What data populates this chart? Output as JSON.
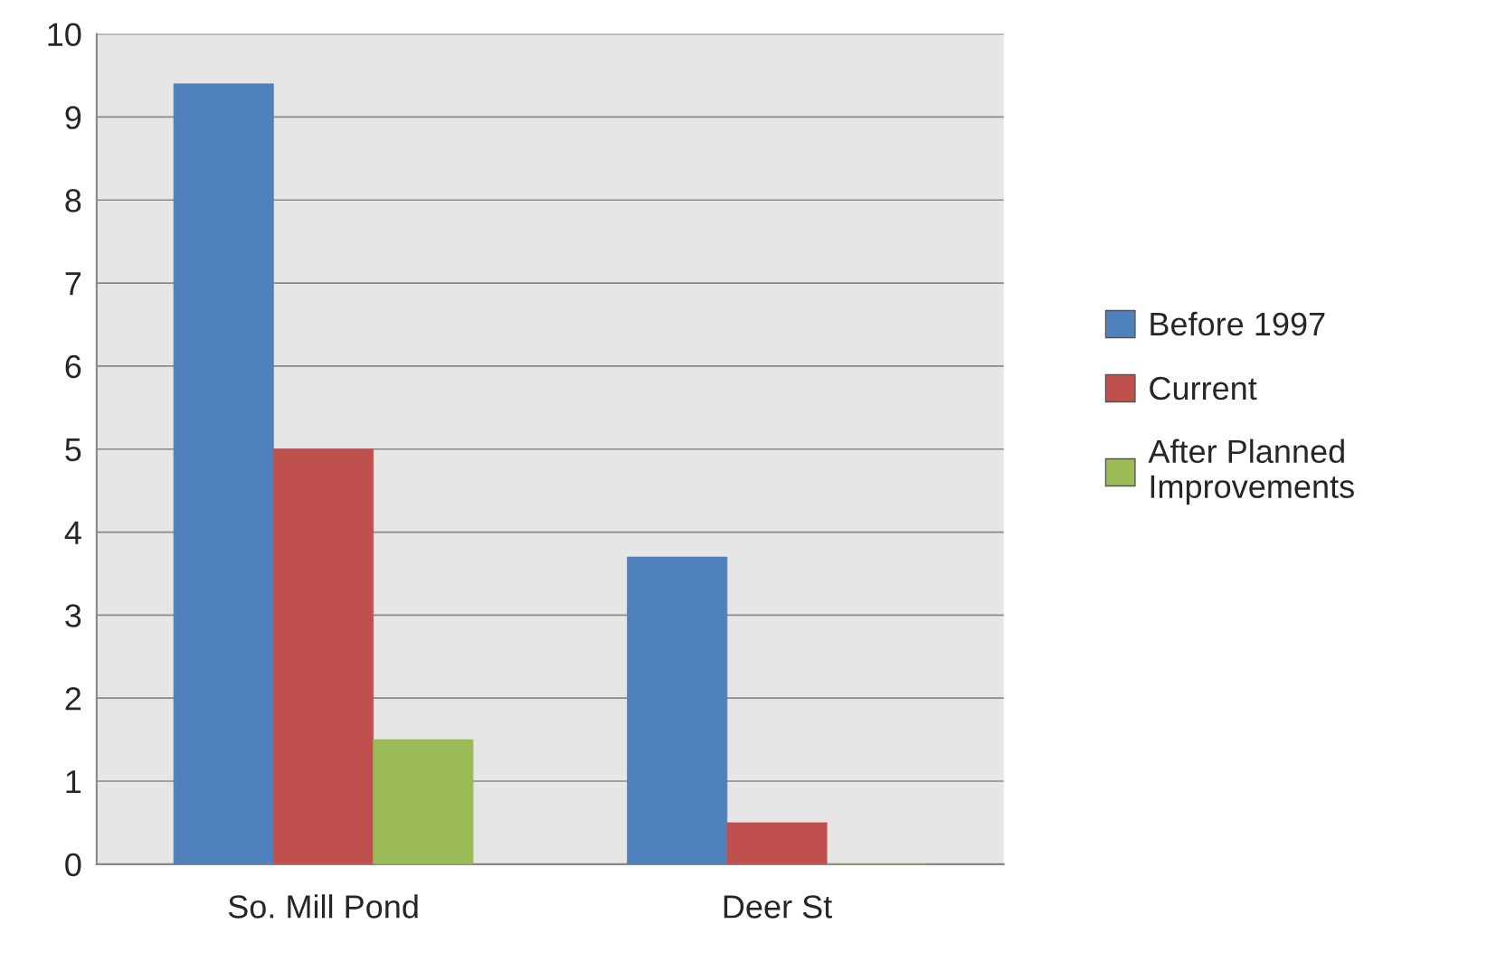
{
  "chart_data": {
    "type": "bar",
    "categories": [
      "So. Mill Pond",
      "Deer St"
    ],
    "series": [
      {
        "name": "Before 1997",
        "color": "#4f81bd",
        "values": [
          9.4,
          3.7
        ]
      },
      {
        "name": "Current",
        "color": "#c0504d",
        "values": [
          5.0,
          0.5
        ]
      },
      {
        "name": "After Planned\nImprovements",
        "color": "#9bbb59",
        "values": [
          1.5,
          0
        ]
      }
    ],
    "ylim": [
      0,
      10
    ],
    "yticks": [
      0,
      1,
      2,
      3,
      4,
      5,
      6,
      7,
      8,
      9,
      10
    ],
    "grid": "y",
    "legend": "right"
  }
}
